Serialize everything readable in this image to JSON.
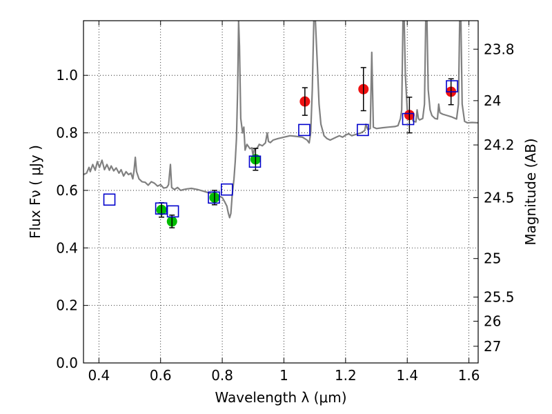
{
  "chart_data": {
    "type": "scatter",
    "xlabel": "Wavelength  λ (μm)",
    "ylabel": "Flux  Fν  ( μJy )",
    "y2label": "Magnitude (AB)",
    "xlim": [
      0.35,
      1.63
    ],
    "ylim": [
      0.0,
      1.19
    ],
    "grid": true,
    "x_ticks": [
      "0.4",
      "0.6",
      "0.8",
      "1",
      "1.2",
      "1.4",
      "1.6"
    ],
    "y_ticks": [
      "0.0",
      "0.2",
      "0.4",
      "0.6",
      "0.8",
      "1.0"
    ],
    "mag_ticks": [
      {
        "label": "23.8",
        "flux": 1.091
      },
      {
        "label": "24",
        "flux": 0.912
      },
      {
        "label": "24.2",
        "flux": 0.758
      },
      {
        "label": "24.5",
        "flux": 0.575
      },
      {
        "label": "25",
        "flux": 0.363
      },
      {
        "label": "25.5",
        "flux": 0.229
      },
      {
        "label": "26",
        "flux": 0.145
      },
      {
        "label": "27",
        "flux": 0.058
      }
    ],
    "series": [
      {
        "marker": "circle",
        "color": "#00bb00",
        "points": [
          {
            "x": 0.603,
            "y": 0.532,
            "err": 0.025
          },
          {
            "x": 0.637,
            "y": 0.492,
            "err": 0.022
          },
          {
            "x": 0.775,
            "y": 0.575,
            "err": 0.025
          },
          {
            "x": 0.908,
            "y": 0.708,
            "err": 0.038
          }
        ]
      },
      {
        "marker": "circle",
        "color": "#ee1111",
        "points": [
          {
            "x": 1.068,
            "y": 0.909,
            "err": 0.048
          },
          {
            "x": 1.258,
            "y": 0.952,
            "err": 0.075
          },
          {
            "x": 1.407,
            "y": 0.862,
            "err": 0.062
          },
          {
            "x": 1.542,
            "y": 0.943,
            "err": 0.045
          }
        ]
      },
      {
        "marker": "open-square",
        "color": "#0000cc",
        "points": [
          {
            "x": 0.434,
            "y": 0.568
          },
          {
            "x": 0.602,
            "y": 0.537
          },
          {
            "x": 0.64,
            "y": 0.527
          },
          {
            "x": 0.773,
            "y": 0.575
          },
          {
            "x": 0.815,
            "y": 0.603
          },
          {
            "x": 0.906,
            "y": 0.7
          },
          {
            "x": 1.066,
            "y": 0.81
          },
          {
            "x": 1.256,
            "y": 0.81
          },
          {
            "x": 1.403,
            "y": 0.848
          },
          {
            "x": 1.545,
            "y": 0.962
          }
        ]
      },
      {
        "marker": "line",
        "color": "#808080",
        "points": [
          [
            0.35,
            0.655
          ],
          [
            0.36,
            0.66
          ],
          [
            0.368,
            0.68
          ],
          [
            0.372,
            0.665
          ],
          [
            0.38,
            0.69
          ],
          [
            0.388,
            0.67
          ],
          [
            0.395,
            0.7
          ],
          [
            0.402,
            0.68
          ],
          [
            0.41,
            0.705
          ],
          [
            0.418,
            0.672
          ],
          [
            0.426,
            0.69
          ],
          [
            0.434,
            0.67
          ],
          [
            0.44,
            0.685
          ],
          [
            0.448,
            0.668
          ],
          [
            0.456,
            0.678
          ],
          [
            0.465,
            0.66
          ],
          [
            0.472,
            0.672
          ],
          [
            0.48,
            0.65
          ],
          [
            0.488,
            0.665
          ],
          [
            0.496,
            0.655
          ],
          [
            0.504,
            0.66
          ],
          [
            0.51,
            0.64
          ],
          [
            0.514,
            0.67
          ],
          [
            0.518,
            0.715
          ],
          [
            0.522,
            0.665
          ],
          [
            0.53,
            0.64
          ],
          [
            0.54,
            0.63
          ],
          [
            0.55,
            0.628
          ],
          [
            0.56,
            0.618
          ],
          [
            0.57,
            0.63
          ],
          [
            0.58,
            0.625
          ],
          [
            0.59,
            0.615
          ],
          [
            0.6,
            0.62
          ],
          [
            0.61,
            0.608
          ],
          [
            0.62,
            0.61
          ],
          [
            0.626,
            0.62
          ],
          [
            0.632,
            0.69
          ],
          [
            0.636,
            0.61
          ],
          [
            0.645,
            0.603
          ],
          [
            0.655,
            0.61
          ],
          [
            0.665,
            0.6
          ],
          [
            0.675,
            0.603
          ],
          [
            0.685,
            0.605
          ],
          [
            0.7,
            0.607
          ],
          [
            0.72,
            0.603
          ],
          [
            0.74,
            0.597
          ],
          [
            0.76,
            0.59
          ],
          [
            0.775,
            0.585
          ],
          [
            0.79,
            0.58
          ],
          [
            0.8,
            0.575
          ],
          [
            0.808,
            0.56
          ],
          [
            0.815,
            0.545
          ],
          [
            0.82,
            0.52
          ],
          [
            0.824,
            0.505
          ],
          [
            0.828,
            0.52
          ],
          [
            0.832,
            0.58
          ],
          [
            0.838,
            0.64
          ],
          [
            0.842,
            0.7
          ],
          [
            0.846,
            0.78
          ],
          [
            0.85,
            0.95
          ],
          [
            0.853,
            1.19
          ],
          [
            0.856,
            1.1
          ],
          [
            0.86,
            0.85
          ],
          [
            0.866,
            0.8
          ],
          [
            0.87,
            0.82
          ],
          [
            0.874,
            0.74
          ],
          [
            0.88,
            0.76
          ],
          [
            0.89,
            0.745
          ],
          [
            0.896,
            0.748
          ],
          [
            0.9,
            0.72
          ],
          [
            0.904,
            0.742
          ],
          [
            0.914,
            0.748
          ],
          [
            0.92,
            0.76
          ],
          [
            0.93,
            0.755
          ],
          [
            0.94,
            0.765
          ],
          [
            0.946,
            0.8
          ],
          [
            0.95,
            0.77
          ],
          [
            0.956,
            0.766
          ],
          [
            0.965,
            0.775
          ],
          [
            0.98,
            0.78
          ],
          [
            1.0,
            0.785
          ],
          [
            1.02,
            0.79
          ],
          [
            1.04,
            0.788
          ],
          [
            1.06,
            0.785
          ],
          [
            1.075,
            0.775
          ],
          [
            1.082,
            0.765
          ],
          [
            1.087,
            0.8
          ],
          [
            1.092,
            0.95
          ],
          [
            1.097,
            1.19
          ],
          [
            1.102,
            1.19
          ],
          [
            1.108,
            1.05
          ],
          [
            1.114,
            0.9
          ],
          [
            1.12,
            0.83
          ],
          [
            1.13,
            0.79
          ],
          [
            1.14,
            0.78
          ],
          [
            1.15,
            0.775
          ],
          [
            1.16,
            0.78
          ],
          [
            1.17,
            0.785
          ],
          [
            1.18,
            0.79
          ],
          [
            1.19,
            0.785
          ],
          [
            1.2,
            0.792
          ],
          [
            1.21,
            0.797
          ],
          [
            1.22,
            0.79
          ],
          [
            1.235,
            0.795
          ],
          [
            1.25,
            0.8
          ],
          [
            1.262,
            0.808
          ],
          [
            1.266,
            0.83
          ],
          [
            1.272,
            0.812
          ],
          [
            1.28,
            0.815
          ],
          [
            1.285,
            1.08
          ],
          [
            1.29,
            0.82
          ],
          [
            1.3,
            0.815
          ],
          [
            1.32,
            0.818
          ],
          [
            1.34,
            0.82
          ],
          [
            1.36,
            0.822
          ],
          [
            1.37,
            0.825
          ],
          [
            1.378,
            0.85
          ],
          [
            1.382,
            0.88
          ],
          [
            1.386,
            1.19
          ],
          [
            1.39,
            1.19
          ],
          [
            1.394,
            1.0
          ],
          [
            1.4,
            0.88
          ],
          [
            1.41,
            0.86
          ],
          [
            1.42,
            0.84
          ],
          [
            1.428,
            0.838
          ],
          [
            1.432,
            0.88
          ],
          [
            1.436,
            0.85
          ],
          [
            1.44,
            0.845
          ],
          [
            1.45,
            0.85
          ],
          [
            1.456,
            0.9
          ],
          [
            1.46,
            1.19
          ],
          [
            1.464,
            1.19
          ],
          [
            1.468,
            0.95
          ],
          [
            1.474,
            0.88
          ],
          [
            1.48,
            0.86
          ],
          [
            1.49,
            0.85
          ],
          [
            1.498,
            0.848
          ],
          [
            1.502,
            0.9
          ],
          [
            1.506,
            0.87
          ],
          [
            1.515,
            0.865
          ],
          [
            1.53,
            0.86
          ],
          [
            1.545,
            0.855
          ],
          [
            1.56,
            0.848
          ],
          [
            1.566,
            0.9
          ],
          [
            1.57,
            1.19
          ],
          [
            1.574,
            1.19
          ],
          [
            1.578,
            0.9
          ],
          [
            1.586,
            0.84
          ],
          [
            1.595,
            0.835
          ],
          [
            1.61,
            0.836
          ],
          [
            1.63,
            0.835
          ]
        ]
      }
    ]
  }
}
